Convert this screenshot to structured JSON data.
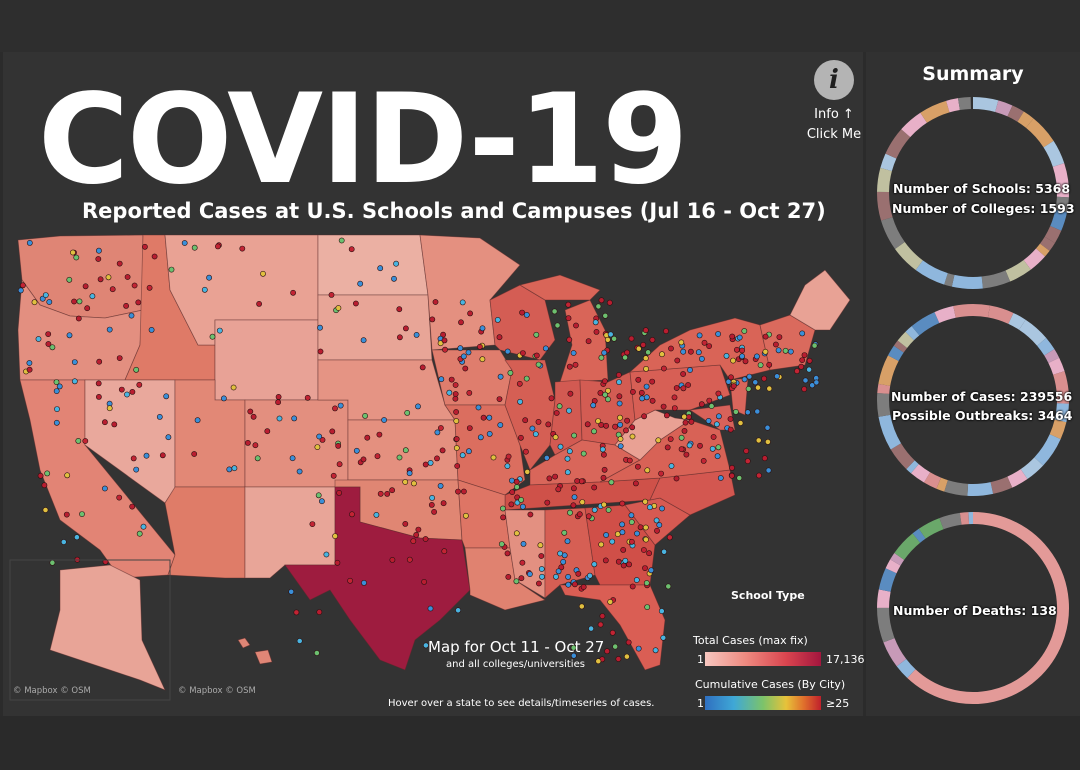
{
  "header": {
    "title": "COVID-19",
    "subtitle": "Reported Cases at U.S. Schools and Campuses (Jul 16 - Oct 27)",
    "info_line1": "Info ↑",
    "info_line2": "Click Me",
    "info_icon": "info-icon"
  },
  "map": {
    "period_title": "Map for  Oct 11 - Oct 27",
    "period_sub": "and all colleges/universities",
    "hover_hint": "Hover over a state to see  details/timeseries of cases.",
    "attribution_main": "© Mapbox © OSM",
    "attribution_inset": "© Mapbox © OSM"
  },
  "legend": {
    "school_type_title": "School Type",
    "total_cases_title": "Total Cases (max fix)",
    "total_min": "1",
    "total_max": "17,136",
    "total_colors": [
      "#f6c6bf",
      "#ee8a80",
      "#d9454f",
      "#a3163e"
    ],
    "cumulative_title": "Cumulative Cases (By City)",
    "cumulative_min": "1",
    "cumulative_max": "≥25",
    "cumulative_colors": [
      "#2f6fc0",
      "#3fa8d6",
      "#7cc36a",
      "#e7c23a",
      "#e0702c",
      "#c0202c"
    ]
  },
  "summary": {
    "title": "Summary",
    "schools": "Number of Schools: 5368",
    "colleges": "Number of Colleges: 1593",
    "cases": "Number of Cases: 239556",
    "outbreaks": "Possible Outbreaks: 3464",
    "deaths": "Number of Deaths: 138"
  }
}
